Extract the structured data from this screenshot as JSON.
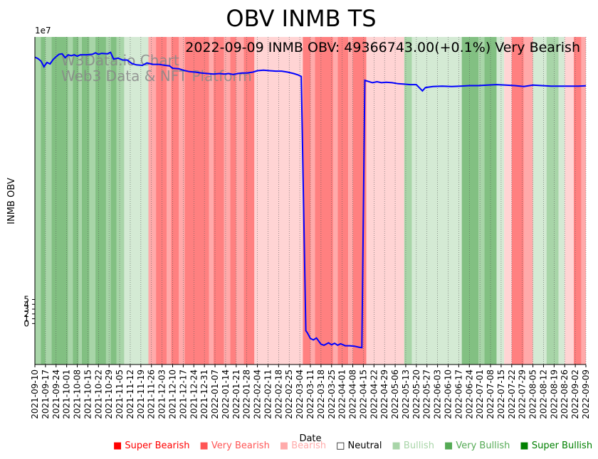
{
  "chart_data": {
    "type": "line",
    "title": "OBV INMB TS",
    "annotation": "2022-09-09 INMB OBV: 49366743.00(+0.1%) Very Bearish",
    "watermark_line1": "W3Data.io Chart",
    "watermark_line2": "Web3 Data & NFT Platform",
    "xlabel": "Date",
    "ylabel": "INMB OBV",
    "y_exponent_label": "1e7",
    "ylim": [
      -8.5,
      59.5
    ],
    "y_ticks": [
      0,
      1,
      2,
      3,
      4,
      5
    ],
    "x_range": [
      "2021-09-10",
      "2022-09-09"
    ],
    "x_tick_labels": [
      "2021-09-10",
      "2021-09-17",
      "2021-09-24",
      "2021-10-01",
      "2021-10-08",
      "2021-10-15",
      "2021-10-22",
      "2021-10-29",
      "2021-11-05",
      "2021-11-12",
      "2021-11-19",
      "2021-11-26",
      "2021-12-03",
      "2021-12-10",
      "2021-12-17",
      "2021-12-24",
      "2021-12-31",
      "2022-01-07",
      "2022-01-14",
      "2022-01-21",
      "2022-01-28",
      "2022-02-04",
      "2022-02-11",
      "2022-02-18",
      "2022-02-25",
      "2022-03-04",
      "2022-03-11",
      "2022-03-18",
      "2022-03-25",
      "2022-04-01",
      "2022-04-08",
      "2022-04-15",
      "2022-04-22",
      "2022-04-29",
      "2022-05-06",
      "2022-05-13",
      "2022-05-20",
      "2022-05-27",
      "2022-06-03",
      "2022-06-10",
      "2022-06-17",
      "2022-06-24",
      "2022-07-01",
      "2022-07-08",
      "2022-07-15",
      "2022-07-22",
      "2022-07-29",
      "2022-08-05",
      "2022-08-12",
      "2022-08-19",
      "2022-08-26",
      "2022-09-02",
      "2022-09-09"
    ],
    "series": [
      {
        "color": "#0000ff",
        "points": [
          [
            "2021-09-10",
            55.3
          ],
          [
            "2021-09-12",
            55.0
          ],
          [
            "2021-09-14",
            54.5
          ],
          [
            "2021-09-16",
            53.3
          ],
          [
            "2021-09-18",
            54.2
          ],
          [
            "2021-09-20",
            53.9
          ],
          [
            "2021-09-22",
            54.8
          ],
          [
            "2021-09-24",
            55.4
          ],
          [
            "2021-09-26",
            55.9
          ],
          [
            "2021-09-28",
            56.0
          ],
          [
            "2021-09-30",
            55.2
          ],
          [
            "2021-10-02",
            55.8
          ],
          [
            "2021-10-04",
            55.6
          ],
          [
            "2021-10-06",
            55.8
          ],
          [
            "2021-10-08",
            55.5
          ],
          [
            "2021-10-10",
            55.8
          ],
          [
            "2021-10-14",
            55.8
          ],
          [
            "2021-10-18",
            55.9
          ],
          [
            "2021-10-20",
            56.2
          ],
          [
            "2021-10-22",
            55.9
          ],
          [
            "2021-10-24",
            56.1
          ],
          [
            "2021-10-28",
            56.0
          ],
          [
            "2021-10-30",
            56.3
          ],
          [
            "2021-11-01",
            54.9
          ],
          [
            "2021-11-04",
            55.1
          ],
          [
            "2021-11-07",
            54.7
          ],
          [
            "2021-11-10",
            54.7
          ],
          [
            "2021-11-13",
            54.0
          ],
          [
            "2021-11-16",
            53.7
          ],
          [
            "2021-11-20",
            53.6
          ],
          [
            "2021-11-23",
            54.1
          ],
          [
            "2021-11-27",
            53.8
          ],
          [
            "2021-12-01",
            53.8
          ],
          [
            "2021-12-05",
            53.6
          ],
          [
            "2021-12-08",
            53.5
          ],
          [
            "2021-12-10",
            53.0
          ],
          [
            "2021-12-14",
            52.9
          ],
          [
            "2021-12-17",
            52.6
          ],
          [
            "2021-12-21",
            52.3
          ],
          [
            "2021-12-25",
            52.2
          ],
          [
            "2021-12-29",
            52.0
          ],
          [
            "2022-01-02",
            51.9
          ],
          [
            "2022-01-06",
            51.8
          ],
          [
            "2022-01-10",
            51.9
          ],
          [
            "2022-01-13",
            51.8
          ],
          [
            "2022-01-16",
            51.9
          ],
          [
            "2022-01-19",
            51.7
          ],
          [
            "2022-01-22",
            51.9
          ],
          [
            "2022-01-25",
            52.0
          ],
          [
            "2022-01-28",
            52.0
          ],
          [
            "2022-02-01",
            52.2
          ],
          [
            "2022-02-04",
            52.5
          ],
          [
            "2022-02-08",
            52.6
          ],
          [
            "2022-02-12",
            52.5
          ],
          [
            "2022-02-16",
            52.4
          ],
          [
            "2022-02-20",
            52.4
          ],
          [
            "2022-02-24",
            52.2
          ],
          [
            "2022-02-28",
            51.9
          ],
          [
            "2022-03-03",
            51.6
          ],
          [
            "2022-03-05",
            51.3
          ],
          [
            "2022-03-08",
            -1.5
          ],
          [
            "2022-03-09",
            -1.9
          ],
          [
            "2022-03-11",
            -3.1
          ],
          [
            "2022-03-13",
            -3.4
          ],
          [
            "2022-03-15",
            -3.0
          ],
          [
            "2022-03-18",
            -4.3
          ],
          [
            "2022-03-20",
            -4.5
          ],
          [
            "2022-03-23",
            -4.0
          ],
          [
            "2022-03-25",
            -4.4
          ],
          [
            "2022-03-27",
            -4.1
          ],
          [
            "2022-03-29",
            -4.5
          ],
          [
            "2022-03-31",
            -4.2
          ],
          [
            "2022-04-03",
            -4.6
          ],
          [
            "2022-04-06",
            -4.6
          ],
          [
            "2022-04-09",
            -4.7
          ],
          [
            "2022-04-12",
            -4.9
          ],
          [
            "2022-04-14",
            -5.0
          ],
          [
            "2022-04-16",
            50.5
          ],
          [
            "2022-04-18",
            50.3
          ],
          [
            "2022-04-21",
            50.0
          ],
          [
            "2022-04-24",
            50.2
          ],
          [
            "2022-04-27",
            50.0
          ],
          [
            "2022-04-30",
            50.1
          ],
          [
            "2022-05-04",
            50.0
          ],
          [
            "2022-05-08",
            49.8
          ],
          [
            "2022-05-12",
            49.7
          ],
          [
            "2022-05-16",
            49.6
          ],
          [
            "2022-05-20",
            49.6
          ],
          [
            "2022-05-24",
            48.3
          ],
          [
            "2022-05-26",
            49.0
          ],
          [
            "2022-05-31",
            49.2
          ],
          [
            "2022-06-06",
            49.3
          ],
          [
            "2022-06-12",
            49.2
          ],
          [
            "2022-06-18",
            49.3
          ],
          [
            "2022-06-24",
            49.4
          ],
          [
            "2022-06-30",
            49.4
          ],
          [
            "2022-07-06",
            49.5
          ],
          [
            "2022-07-12",
            49.6
          ],
          [
            "2022-07-18",
            49.5
          ],
          [
            "2022-07-24",
            49.4
          ],
          [
            "2022-07-30",
            49.2
          ],
          [
            "2022-08-05",
            49.5
          ],
          [
            "2022-08-11",
            49.4
          ],
          [
            "2022-08-17",
            49.3
          ],
          [
            "2022-08-23",
            49.3
          ],
          [
            "2022-08-29",
            49.3
          ],
          [
            "2022-09-04",
            49.3
          ],
          [
            "2022-09-09",
            49.37
          ]
        ]
      }
    ],
    "signal_bands": [
      [
        "2021-09-10",
        "2021-09-14",
        "bullish"
      ],
      [
        "2021-09-14",
        "2021-09-17",
        "very_bullish"
      ],
      [
        "2021-09-17",
        "2021-09-21",
        "bullish"
      ],
      [
        "2021-09-21",
        "2021-10-02",
        "very_bullish"
      ],
      [
        "2021-10-02",
        "2021-10-05",
        "bullish"
      ],
      [
        "2021-10-05",
        "2021-10-09",
        "very_bullish"
      ],
      [
        "2021-10-09",
        "2021-10-11",
        "bullish"
      ],
      [
        "2021-10-11",
        "2021-10-16",
        "very_bullish"
      ],
      [
        "2021-10-16",
        "2021-10-20",
        "bullish"
      ],
      [
        "2021-10-20",
        "2021-10-27",
        "very_bullish"
      ],
      [
        "2021-10-27",
        "2021-10-30",
        "bullish"
      ],
      [
        "2021-10-30",
        "2021-11-03",
        "very_bullish"
      ],
      [
        "2021-11-03",
        "2021-11-08",
        "bullish"
      ],
      [
        "2021-11-08",
        "2021-11-24",
        "light_bullish"
      ],
      [
        "2021-11-24",
        "2021-11-29",
        "bearish"
      ],
      [
        "2021-11-29",
        "2021-12-06",
        "very_bearish"
      ],
      [
        "2021-12-06",
        "2021-12-09",
        "bearish"
      ],
      [
        "2021-12-09",
        "2021-12-14",
        "very_bearish"
      ],
      [
        "2021-12-14",
        "2021-12-18",
        "bearish"
      ],
      [
        "2021-12-18",
        "2022-01-03",
        "very_bearish"
      ],
      [
        "2022-01-03",
        "2022-01-06",
        "bearish"
      ],
      [
        "2022-01-06",
        "2022-01-13",
        "very_bearish"
      ],
      [
        "2022-01-13",
        "2022-01-17",
        "bearish"
      ],
      [
        "2022-01-17",
        "2022-01-21",
        "very_bearish"
      ],
      [
        "2022-01-21",
        "2022-01-26",
        "bearish"
      ],
      [
        "2022-01-26",
        "2022-02-02",
        "very_bearish"
      ],
      [
        "2022-02-02",
        "2022-03-06",
        "light_bearish"
      ],
      [
        "2022-03-06",
        "2022-03-11",
        "very_bearish"
      ],
      [
        "2022-03-11",
        "2022-03-14",
        "bearish"
      ],
      [
        "2022-03-14",
        "2022-03-26",
        "very_bearish"
      ],
      [
        "2022-03-26",
        "2022-03-29",
        "bearish"
      ],
      [
        "2022-03-29",
        "2022-04-05",
        "very_bearish"
      ],
      [
        "2022-04-05",
        "2022-04-08",
        "bearish"
      ],
      [
        "2022-04-08",
        "2022-04-17",
        "very_bearish"
      ],
      [
        "2022-04-17",
        "2022-05-12",
        "light_bearish"
      ],
      [
        "2022-05-12",
        "2022-05-17",
        "bullish"
      ],
      [
        "2022-05-17",
        "2022-06-19",
        "light_bullish"
      ],
      [
        "2022-06-19",
        "2022-06-30",
        "very_bullish"
      ],
      [
        "2022-06-30",
        "2022-07-04",
        "bullish"
      ],
      [
        "2022-07-04",
        "2022-07-12",
        "very_bullish"
      ],
      [
        "2022-07-12",
        "2022-07-17",
        "light_bullish"
      ],
      [
        "2022-07-17",
        "2022-07-22",
        "light_bearish"
      ],
      [
        "2022-07-22",
        "2022-07-30",
        "very_bearish"
      ],
      [
        "2022-07-30",
        "2022-08-05",
        "bearish"
      ],
      [
        "2022-08-05",
        "2022-08-14",
        "light_bullish"
      ],
      [
        "2022-08-14",
        "2022-08-22",
        "bullish"
      ],
      [
        "2022-08-22",
        "2022-08-26",
        "light_bullish"
      ],
      [
        "2022-08-26",
        "2022-09-01",
        "light_bearish"
      ],
      [
        "2022-09-01",
        "2022-09-06",
        "very_bearish"
      ],
      [
        "2022-09-06",
        "2022-09-09",
        "bearish"
      ]
    ],
    "band_colors": {
      "very_bearish": "#ff8080",
      "bearish": "#ffaaaa",
      "light_bearish": "#ffd4d4",
      "light_bullish": "#d4ead4",
      "bullish": "#a8d5a8",
      "very_bullish": "#82c082"
    },
    "legend": [
      {
        "label": "Super Bearish",
        "color": "#ff0000"
      },
      {
        "label": "Very Bearish",
        "color": "#ff5555"
      },
      {
        "label": "Bearish",
        "color": "#ffaaaa"
      },
      {
        "label": "Neutral",
        "color": "#000000"
      },
      {
        "label": "Bullish",
        "color": "#a8d5a8"
      },
      {
        "label": "Very Bullish",
        "color": "#55aa55"
      },
      {
        "label": "Super Bullish",
        "color": "#008000"
      }
    ]
  }
}
